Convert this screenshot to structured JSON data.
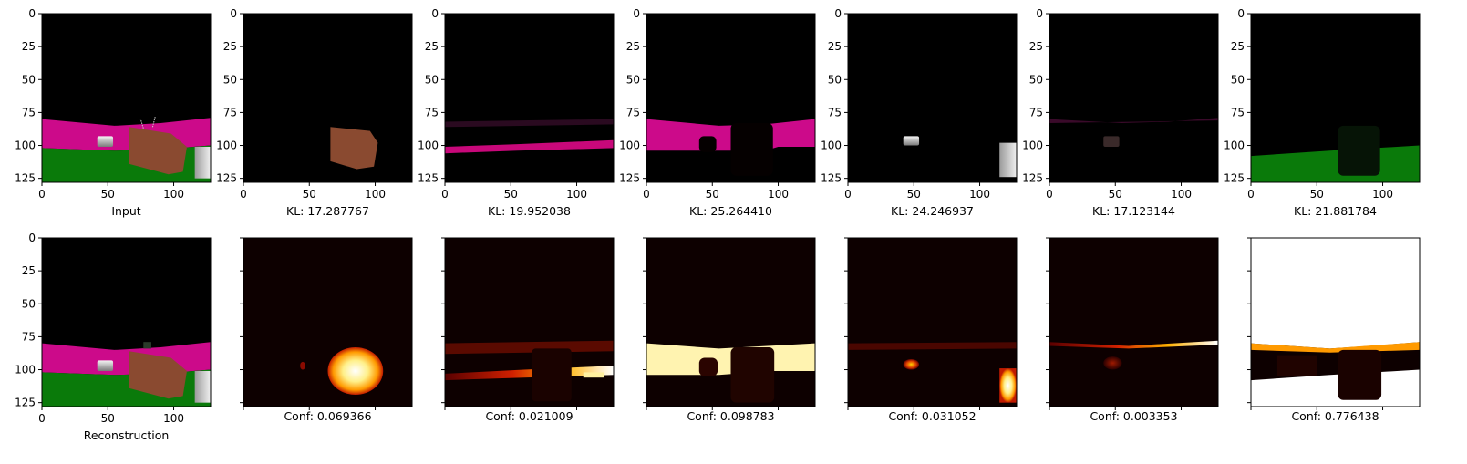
{
  "figure": {
    "panel_count": 7,
    "row_labels": [
      "Input",
      "Reconstruction"
    ],
    "kl_captions": [
      "KL: 17.287767",
      "KL: 19.952038",
      "KL: 25.264410",
      "KL: 24.246937",
      "KL: 17.123144",
      "KL: 21.881784"
    ],
    "conf_captions": [
      "Conf: 0.069366",
      "Conf: 0.021009",
      "Conf: 0.098783",
      "Conf: 0.031052",
      "Conf: 0.003353",
      "Conf: 0.776438"
    ]
  },
  "chart_data": {
    "type": "heatmap",
    "description_of_layout": "2 x 7 grid of image panels",
    "axes": {
      "x_ticks": [
        0,
        50,
        100
      ],
      "y_ticks": [
        0,
        25,
        50,
        75,
        100,
        125
      ],
      "xlim": [
        0,
        128
      ],
      "ylim": [
        128,
        0
      ]
    },
    "top_row": {
      "panel_labels": [
        "Input",
        "KL: 17.287767",
        "KL: 19.952038",
        "KL: 25.264410",
        "KL: 24.246937",
        "KL: 17.123144",
        "KL: 21.881784"
      ],
      "kl_values": [
        17.287767,
        19.952038,
        25.26441,
        24.246937,
        17.123144,
        21.881784
      ]
    },
    "bottom_row": {
      "panel_labels": [
        "Reconstruction",
        "Conf: 0.069366",
        "Conf: 0.021009",
        "Conf: 0.098783",
        "Conf: 0.031052",
        "Conf: 0.003353",
        "Conf: 0.776438"
      ],
      "conf_values": [
        0.069366,
        0.021009,
        0.098783,
        0.031052,
        0.003353,
        0.776438
      ]
    },
    "colors": {
      "background": "#000000",
      "magenta_wall": "#cc0a8a",
      "green_floor": "#0a7a0a",
      "brown_object": "#8a4a30",
      "heat_dark": "#0d0000",
      "heat_hot": "#ffffff"
    }
  }
}
